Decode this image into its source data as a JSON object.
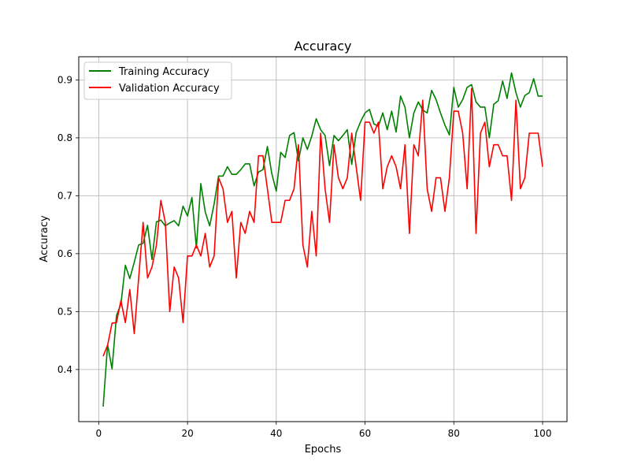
{
  "chart_data": {
    "type": "line",
    "title": "Accuracy",
    "xlabel": "Epochs",
    "ylabel": "Accuracy",
    "xlim": [
      -4.5,
      105.5
    ],
    "ylim": [
      0.31,
      0.94
    ],
    "xticks": [
      0,
      20,
      40,
      60,
      80,
      100
    ],
    "yticks": [
      0.4,
      0.5,
      0.6,
      0.7,
      0.8,
      0.9
    ],
    "grid": true,
    "legend_position": "top-left",
    "x": [
      1,
      2,
      3,
      4,
      5,
      6,
      7,
      8,
      9,
      10,
      11,
      12,
      13,
      14,
      15,
      16,
      17,
      18,
      19,
      20,
      21,
      22,
      23,
      24,
      25,
      26,
      27,
      28,
      29,
      30,
      31,
      32,
      33,
      34,
      35,
      36,
      37,
      38,
      39,
      40,
      41,
      42,
      43,
      44,
      45,
      46,
      47,
      48,
      49,
      50,
      51,
      52,
      53,
      54,
      55,
      56,
      57,
      58,
      59,
      60,
      61,
      62,
      63,
      64,
      65,
      66,
      67,
      68,
      69,
      70,
      71,
      72,
      73,
      74,
      75,
      76,
      77,
      78,
      79,
      80,
      81,
      82,
      83,
      84,
      85,
      86,
      87,
      88,
      89,
      90,
      91,
      92,
      93,
      94,
      95,
      96,
      97,
      98,
      99,
      100
    ],
    "series": [
      {
        "name": "Training Accuracy",
        "color": "#008000",
        "values": [
          0.336,
          0.443,
          0.401,
          0.493,
          0.513,
          0.58,
          0.557,
          0.585,
          0.615,
          0.618,
          0.649,
          0.59,
          0.655,
          0.658,
          0.648,
          0.653,
          0.657,
          0.648,
          0.682,
          0.665,
          0.697,
          0.61,
          0.721,
          0.672,
          0.648,
          0.686,
          0.734,
          0.734,
          0.75,
          0.737,
          0.737,
          0.745,
          0.755,
          0.755,
          0.717,
          0.741,
          0.745,
          0.785,
          0.738,
          0.708,
          0.775,
          0.766,
          0.804,
          0.809,
          0.76,
          0.8,
          0.78,
          0.803,
          0.833,
          0.814,
          0.804,
          0.752,
          0.804,
          0.795,
          0.804,
          0.814,
          0.754,
          0.809,
          0.828,
          0.843,
          0.849,
          0.824,
          0.82,
          0.843,
          0.814,
          0.846,
          0.81,
          0.872,
          0.853,
          0.8,
          0.843,
          0.862,
          0.848,
          0.843,
          0.882,
          0.866,
          0.843,
          0.822,
          0.805,
          0.887,
          0.853,
          0.866,
          0.887,
          0.892,
          0.862,
          0.853,
          0.853,
          0.8,
          0.858,
          0.864,
          0.898,
          0.868,
          0.912,
          0.878,
          0.853,
          0.873,
          0.878,
          0.902,
          0.872,
          0.872
        ]
      },
      {
        "name": "Validation Accuracy",
        "color": "#ff0000",
        "values": [
          0.423,
          0.442,
          0.48,
          0.481,
          0.519,
          0.481,
          0.538,
          0.462,
          0.558,
          0.654,
          0.558,
          0.577,
          0.615,
          0.692,
          0.654,
          0.5,
          0.577,
          0.558,
          0.481,
          0.596,
          0.596,
          0.615,
          0.596,
          0.635,
          0.577,
          0.596,
          0.731,
          0.712,
          0.654,
          0.673,
          0.558,
          0.654,
          0.635,
          0.673,
          0.654,
          0.769,
          0.769,
          0.712,
          0.654,
          0.654,
          0.654,
          0.692,
          0.692,
          0.712,
          0.788,
          0.615,
          0.577,
          0.673,
          0.596,
          0.808,
          0.712,
          0.654,
          0.788,
          0.731,
          0.712,
          0.731,
          0.808,
          0.75,
          0.692,
          0.827,
          0.827,
          0.808,
          0.827,
          0.712,
          0.75,
          0.769,
          0.75,
          0.712,
          0.788,
          0.635,
          0.788,
          0.769,
          0.865,
          0.712,
          0.673,
          0.731,
          0.731,
          0.673,
          0.731,
          0.846,
          0.846,
          0.808,
          0.712,
          0.885,
          0.635,
          0.808,
          0.827,
          0.75,
          0.788,
          0.788,
          0.769,
          0.769,
          0.692,
          0.865,
          0.712,
          0.731,
          0.808,
          0.808,
          0.808,
          0.75
        ]
      }
    ]
  }
}
